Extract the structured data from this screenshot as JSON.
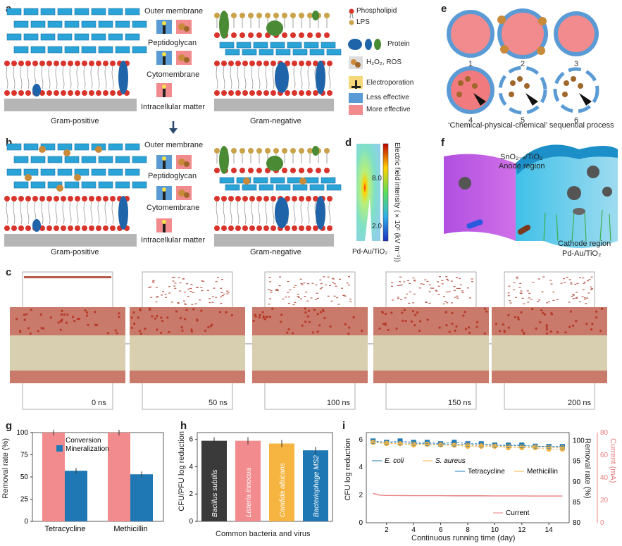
{
  "panels": {
    "a": {
      "label": "a",
      "outer_membrane": "Outer membrane",
      "peptidoglycan": "Peptidoglycan",
      "cytomembrane": "Cytomembrane",
      "intracellular": "Intracellular matter",
      "gram_positive": "Gram-positive",
      "gram_negative": "Gram-negative"
    },
    "b": {
      "label": "b",
      "outer_membrane": "Outer membrane",
      "peptidoglycan": "Peptidoglycan",
      "cytomembrane": "Cytomembrane",
      "intracellular": "Intracellular matter",
      "gram_positive": "Gram-positive",
      "gram_negative": "Gram-negative"
    },
    "legend": {
      "phospholipid": "Phospholipid",
      "lps": "LPS",
      "protein": "Protein",
      "h2o2": "H₂O₂, ROS",
      "electroporation": "Electroporation",
      "less": "Less effective",
      "more": "More effective",
      "colors": {
        "less": "#5b9bd5",
        "more": "#f28b8e"
      }
    },
    "c": {
      "label": "c",
      "times": [
        "0 ns",
        "50 ns",
        "100 ns",
        "150 ns",
        "200 ns"
      ]
    },
    "d": {
      "label": "d",
      "axis_title": "Electric field intensity (×10⁵ (kV m⁻¹))",
      "ticks": [
        "8.0",
        "2.0"
      ],
      "caption": "Pd-Au/TiO₂"
    },
    "e": {
      "label": "e",
      "numbers": [
        "1",
        "2",
        "3",
        "4",
        "5",
        "6"
      ],
      "caption": "‘Chemical-physical-chemical’ sequential process"
    },
    "f": {
      "label": "f",
      "anode_line1": "SnO₂₋ₓ/TiO₂",
      "anode_line2": "Anode region",
      "cathode_line1": "Cathode region",
      "cathode_line2": "Pd-Au/TiO₂"
    },
    "g": {
      "label": "g",
      "ylabel": "Removal rate (%)",
      "legend": [
        "Conversion",
        "Mineralization"
      ]
    },
    "h": {
      "label": "h",
      "ylabel": "CFU/PFU log reduction",
      "xlabel": "Common bacteria and virus"
    },
    "i": {
      "label": "i",
      "ylabel_left": "CFU log reduction",
      "ylabel_right1": "Removal rate (%)",
      "ylabel_right2": "Current (mA)",
      "xlabel": "Continuous running time (day)",
      "legend": [
        "E. coli",
        "S. aureus",
        "Tetracycline",
        "Methicillin",
        "Current"
      ]
    }
  },
  "chart_data": [
    {
      "type": "bar",
      "panel": "g",
      "categories": [
        "Tetracycline",
        "Methicillin"
      ],
      "series": [
        {
          "name": "Conversion",
          "values": [
            100,
            100
          ],
          "color": "#f28b8e"
        },
        {
          "name": "Mineralization",
          "values": [
            57,
            53
          ],
          "color": "#1f78b4"
        }
      ],
      "ylabel": "Removal rate (%)",
      "ylim": [
        0,
        100
      ],
      "yticks": [
        0,
        25,
        50,
        75,
        100
      ]
    },
    {
      "type": "bar",
      "panel": "h",
      "categories": [
        "Bacillus subtilis",
        "Listeria innocua",
        "Candida albicans",
        "Bacteriophage MS2"
      ],
      "values": [
        5.9,
        5.9,
        5.7,
        5.2
      ],
      "colors": [
        "#3a3a3a",
        "#f28b8e",
        "#f5b540",
        "#1f78b4"
      ],
      "ylabel": "CFU/PFU log reduction",
      "xlabel": "Common bacteria and virus",
      "ylim": [
        0,
        6.5
      ],
      "yticks": [
        0,
        2,
        4,
        6
      ]
    },
    {
      "type": "line",
      "panel": "i",
      "xlabel": "Continuous running time (day)",
      "xlim": [
        0.5,
        15.5
      ],
      "xticks": [
        2,
        4,
        6,
        8,
        10,
        12,
        14
      ],
      "left_axis": {
        "label": "CFU log reduction",
        "ylim": [
          0,
          6.5
        ],
        "ticks": [
          0,
          2,
          4,
          6
        ]
      },
      "right_axis1": {
        "label": "Removal rate (%)",
        "ylim": [
          80,
          102
        ],
        "ticks": [
          80,
          85,
          90,
          95,
          100
        ]
      },
      "right_axis2": {
        "label": "Current (mA)",
        "ylim": [
          0,
          80
        ],
        "ticks": [
          0,
          20,
          40,
          60,
          80
        ]
      },
      "series": [
        {
          "name": "E. coli",
          "axis": "left",
          "x": [
            1,
            2,
            3,
            4,
            5,
            6,
            7,
            8,
            9,
            10,
            11,
            12,
            13,
            14,
            15
          ],
          "values": [
            5.9,
            5.8,
            5.9,
            5.8,
            5.8,
            5.7,
            5.8,
            5.7,
            5.7,
            5.6,
            5.6,
            5.6,
            5.5,
            5.5,
            5.5
          ]
        },
        {
          "name": "S. aureus",
          "axis": "left",
          "x": [
            1,
            2,
            3,
            4,
            5,
            6,
            7,
            8,
            9,
            10,
            11,
            12,
            13,
            14,
            15
          ],
          "values": [
            5.8,
            5.7,
            5.7,
            5.6,
            5.7,
            5.6,
            5.6,
            5.5,
            5.5,
            5.5,
            5.4,
            5.4,
            5.4,
            5.3,
            5.3
          ]
        },
        {
          "name": "Tetracycline",
          "axis": "right1",
          "x": [
            1,
            2,
            3,
            4,
            5,
            6,
            7,
            8,
            9,
            10,
            11,
            12,
            13,
            14,
            15
          ],
          "values": [
            99.8,
            99.6,
            99.5,
            99.4,
            99.3,
            99.2,
            99.2,
            99.1,
            99.0,
            98.9,
            98.8,
            98.8,
            98.7,
            98.6,
            98.5
          ]
        },
        {
          "name": "Methicillin",
          "axis": "right1",
          "x": [
            1,
            2,
            3,
            4,
            5,
            6,
            7,
            8,
            9,
            10,
            11,
            12,
            13,
            14,
            15
          ],
          "values": [
            99.6,
            99.4,
            99.3,
            99.2,
            99.1,
            99.0,
            98.9,
            98.9,
            98.8,
            98.7,
            98.6,
            98.5,
            98.5,
            98.4,
            98.3
          ]
        },
        {
          "name": "Current",
          "axis": "right2",
          "x": [
            1,
            1.5,
            2,
            3,
            4,
            5,
            6,
            7,
            8,
            9,
            10,
            11,
            12,
            13,
            14,
            15
          ],
          "values": [
            26,
            24.5,
            24.2,
            24.1,
            24,
            24,
            24,
            23.9,
            23.9,
            23.9,
            23.8,
            23.8,
            23.8,
            23.7,
            23.7,
            23.7
          ]
        }
      ]
    }
  ]
}
